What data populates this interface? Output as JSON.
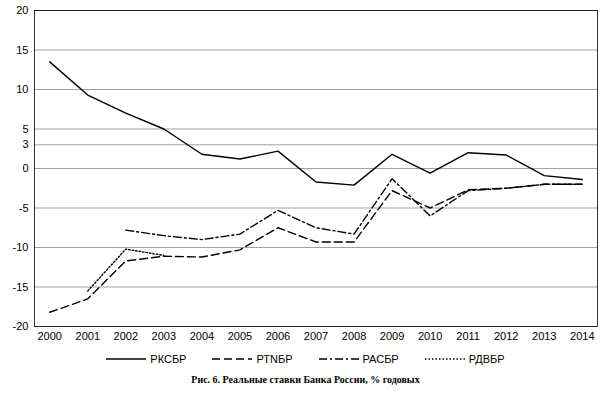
{
  "chart_data": {
    "type": "line",
    "caption": "Рис. 6. Реальные ставки Банка России, % годовых",
    "x": [
      2000,
      2001,
      2002,
      2003,
      2004,
      2005,
      2006,
      2007,
      2008,
      2009,
      2010,
      2011,
      2012,
      2013,
      2014
    ],
    "xlim": [
      1999.6,
      2014.4
    ],
    "xticks": [
      2000,
      2001,
      2002,
      2003,
      2004,
      2005,
      2006,
      2007,
      2008,
      2009,
      2010,
      2011,
      2012,
      2013,
      2014
    ],
    "ylim": [
      -20,
      20
    ],
    "yticks": [
      -20,
      -15,
      -10,
      -5,
      0,
      3,
      5,
      10,
      15,
      20
    ],
    "grid": true,
    "legend": "bottom",
    "series": [
      {
        "name": "РКСБР",
        "color": "#000000",
        "line_style": "solid",
        "values": [
          13.5,
          9.3,
          7.0,
          5.0,
          1.8,
          1.2,
          2.2,
          -1.7,
          -2.1,
          1.8,
          -0.6,
          2.0,
          1.7,
          -0.9,
          -1.4
        ]
      },
      {
        "name": "РТNБР",
        "color": "#000000",
        "line_style": "dashed",
        "values": [
          -18.2,
          -16.5,
          -11.7,
          -11.1,
          -11.2,
          -10.3,
          -7.5,
          -9.3,
          -9.3,
          -2.8,
          -5.0,
          -2.7,
          -2.5,
          -2.0,
          -2.0
        ]
      },
      {
        "name": "РАСБР",
        "color": "#000000",
        "line_style": "dashdot",
        "values": [
          null,
          null,
          -7.8,
          -8.5,
          -9.0,
          -8.3,
          -5.3,
          -7.5,
          -8.3,
          -1.3,
          -6.0,
          -2.8,
          -2.5,
          -2.0,
          -2.0
        ]
      },
      {
        "name": "РДВБР",
        "color": "#000000",
        "line_style": "dotted",
        "values": [
          null,
          -15.5,
          -10.2,
          -11.0,
          null,
          null,
          null,
          null,
          null,
          null,
          null,
          null,
          null,
          null,
          null
        ]
      }
    ]
  }
}
